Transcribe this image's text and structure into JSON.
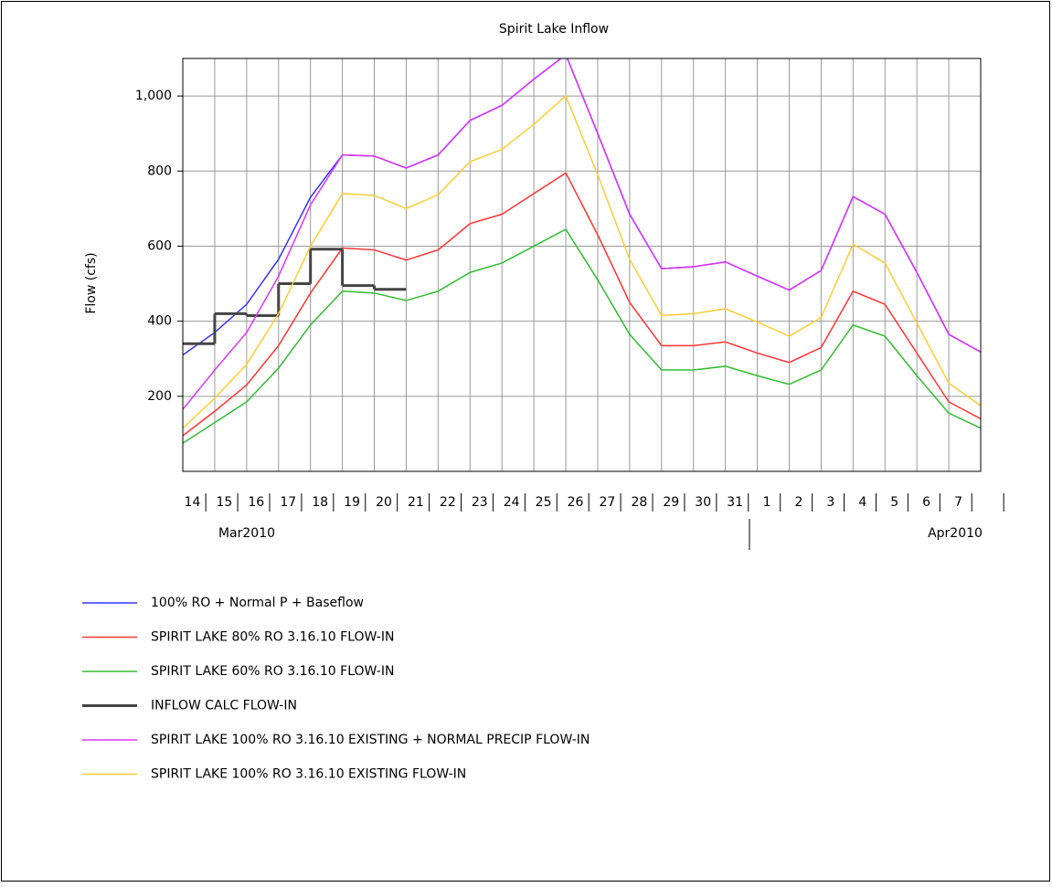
{
  "chart_data": {
    "type": "line",
    "title": "Spirit Lake Inflow",
    "ylabel": "Flow (cfs)",
    "categories": [
      "14",
      "15",
      "16",
      "17",
      "18",
      "19",
      "20",
      "21",
      "22",
      "23",
      "24",
      "25",
      "26",
      "27",
      "28",
      "29",
      "30",
      "31",
      "1",
      "2",
      "3",
      "4",
      "5",
      "6",
      "7",
      null
    ],
    "x_groups": [
      "Mar2010",
      "Apr2010"
    ],
    "ylim": [
      0,
      1100
    ],
    "yticks": [
      200,
      400,
      600,
      800,
      {
        "value": 1000,
        "label": "1,000"
      }
    ],
    "grid": true,
    "legend": "bottom",
    "series": [
      {
        "name": "100% RO + Normal P + Baseflow",
        "color": "#3333ff",
        "values": [
          310,
          370,
          445,
          565,
          730,
          843,
          840,
          808,
          843,
          935,
          975,
          1045,
          1110,
          900,
          685,
          540,
          545,
          558,
          520,
          483,
          535,
          732,
          685,
          530,
          365,
          318
        ]
      },
      {
        "name": "SPIRIT LAKE 80% RO 3.16.10 FLOW-IN",
        "color": "#ff3333",
        "values": [
          95,
          160,
          230,
          335,
          475,
          595,
          590,
          563,
          590,
          660,
          685,
          740,
          795,
          630,
          450,
          335,
          335,
          345,
          315,
          290,
          330,
          480,
          445,
          315,
          185,
          140
        ]
      },
      {
        "name": "SPIRIT LAKE 60% RO 3.16.10 FLOW-IN",
        "color": "#33bb33",
        "values": [
          75,
          130,
          185,
          275,
          390,
          480,
          475,
          455,
          480,
          530,
          555,
          600,
          645,
          510,
          365,
          270,
          270,
          280,
          255,
          232,
          270,
          390,
          360,
          255,
          155,
          115
        ]
      },
      {
        "name": "INFLOW CALC FLOW-IN",
        "color": "#444444",
        "step": true,
        "values": [
          340,
          420,
          415,
          500,
          592,
          495,
          485,
          null,
          null,
          null,
          null,
          null,
          null,
          null,
          null,
          null,
          null,
          null,
          null,
          null,
          null,
          null,
          null,
          null,
          null,
          null
        ]
      },
      {
        "name": "SPIRIT LAKE 100% RO 3.16.10 EXISTING + NORMAL PRECIP FLOW-IN",
        "color": "#dd33ff",
        "values": [
          165,
          270,
          370,
          520,
          710,
          843,
          840,
          808,
          843,
          935,
          975,
          1045,
          1110,
          900,
          685,
          540,
          545,
          558,
          520,
          483,
          535,
          732,
          685,
          530,
          365,
          318
        ]
      },
      {
        "name": "SPIRIT LAKE 100% RO 3.16.10 EXISTING FLOW-IN",
        "color": "#ffcc33",
        "values": [
          115,
          195,
          285,
          420,
          600,
          740,
          735,
          700,
          737,
          825,
          858,
          925,
          1000,
          790,
          565,
          415,
          420,
          433,
          398,
          360,
          410,
          605,
          555,
          395,
          235,
          175
        ]
      }
    ]
  }
}
